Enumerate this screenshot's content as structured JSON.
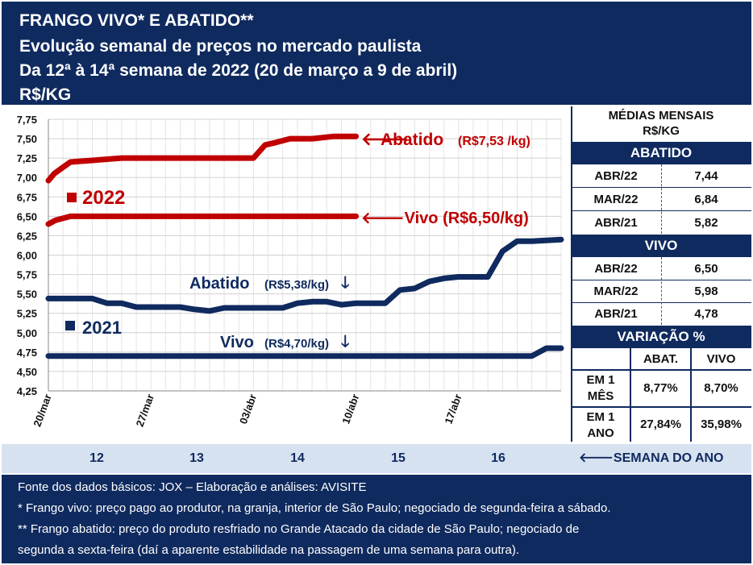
{
  "header": {
    "line1": "FRANGO VIVO* E ABATIDO**",
    "line2": "Evolução semanal de preços no mercado paulista",
    "line3": "Da 12ª à 14ª semana de 2022 (20 de março a 9 de abril)",
    "line4": "R$/KG"
  },
  "colors": {
    "navy": "#0f2a5e",
    "red": "#c00000",
    "light_blue": "#d7e2f1"
  },
  "chart_data": {
    "type": "line",
    "ylim": [
      4.25,
      7.75
    ],
    "yticks": [
      "7,75",
      "7,50",
      "7,25",
      "7,00",
      "6,75",
      "6,50",
      "6,25",
      "6,00",
      "5,75",
      "5,50",
      "5,25",
      "5,00",
      "4,75",
      "4,50",
      "4,25"
    ],
    "ytick_values": [
      7.75,
      7.5,
      7.25,
      7.0,
      6.75,
      6.5,
      6.25,
      6.0,
      5.75,
      5.5,
      5.25,
      5.0,
      4.75,
      4.5,
      4.25
    ],
    "xlim": [
      0,
      35
    ],
    "xtick_labels": [
      "20/mar",
      "27/mar",
      "03/abr",
      "10/abr",
      "17/abr"
    ],
    "xtick_values": [
      0,
      7,
      14,
      21,
      28
    ],
    "grid": true,
    "series": [
      {
        "name": "Abatido 2022",
        "color": "#c00000",
        "year": "2022",
        "x": [
          0,
          0.4,
          1.5,
          3,
          5,
          7,
          9,
          11,
          13,
          14,
          14.8,
          15.5,
          16.5,
          18,
          19.5,
          21
        ],
        "y": [
          6.96,
          7.05,
          7.2,
          7.22,
          7.25,
          7.25,
          7.25,
          7.25,
          7.25,
          7.25,
          7.42,
          7.45,
          7.5,
          7.5,
          7.53,
          7.53
        ]
      },
      {
        "name": "Vivo 2022",
        "color": "#c00000",
        "year": "2022",
        "x": [
          0,
          0.5,
          1.5,
          3,
          7,
          10,
          14,
          18,
          21
        ],
        "y": [
          6.4,
          6.45,
          6.5,
          6.5,
          6.5,
          6.5,
          6.5,
          6.5,
          6.5
        ]
      },
      {
        "name": "Abatido 2021",
        "color": "#0f2a5e",
        "year": "2021",
        "x": [
          0,
          1,
          2,
          3,
          4,
          5,
          6,
          7,
          8,
          9,
          10,
          11,
          12,
          13,
          14,
          15,
          16,
          17,
          18,
          19,
          20,
          21,
          22,
          23,
          24,
          25,
          26,
          27,
          28,
          29,
          30,
          31,
          32,
          33,
          34,
          35
        ],
        "y": [
          5.44,
          5.44,
          5.44,
          5.44,
          5.38,
          5.38,
          5.33,
          5.33,
          5.33,
          5.33,
          5.3,
          5.28,
          5.32,
          5.32,
          5.32,
          5.32,
          5.32,
          5.38,
          5.4,
          5.4,
          5.36,
          5.38,
          5.38,
          5.38,
          5.55,
          5.57,
          5.66,
          5.7,
          5.72,
          5.72,
          5.72,
          6.05,
          6.18,
          6.18,
          6.19,
          6.2
        ]
      },
      {
        "name": "Vivo 2021",
        "color": "#0f2a5e",
        "year": "2021",
        "x": [
          0,
          10,
          20,
          30,
          31,
          32,
          33,
          34,
          35
        ],
        "y": [
          4.7,
          4.7,
          4.7,
          4.7,
          4.7,
          4.7,
          4.7,
          4.8,
          4.8
        ]
      }
    ],
    "annotations": {
      "abat22_arrow": "🡐",
      "abat22_name": "Abatido",
      "abat22_val": "(R$7,53 /kg)",
      "vivo22_text": "🡐Vivo (R$6,50/kg)",
      "year2022": "2022",
      "year2021": "2021",
      "abat21_name": "Abatido",
      "abat21_val": "(R$5,38/kg)",
      "vivo21_name": "Vivo",
      "vivo21_val": "(R$4,70/kg)",
      "down_arrow": "🡓"
    }
  },
  "panel": {
    "title1": "MÉDIAS MENSAIS",
    "title2": "R$/KG",
    "abatido_title": "ABATIDO",
    "abatido_rows": [
      {
        "label": "ABR/22",
        "value": "7,44"
      },
      {
        "label": "MAR/22",
        "value": "6,84"
      },
      {
        "label": "ABR/21",
        "value": "5,82"
      }
    ],
    "vivo_title": "VIVO",
    "vivo_rows": [
      {
        "label": "ABR/22",
        "value": "6,50"
      },
      {
        "label": "MAR/22",
        "value": "5,98"
      },
      {
        "label": "ABR/21",
        "value": "4,78"
      }
    ],
    "variacao_title": "VARIAÇÃO %",
    "col_abat": "ABAT.",
    "col_vivo": "VIVO",
    "var_rows": [
      {
        "label1": "EM 1",
        "label2": "MÊS",
        "abat": "8,77%",
        "vivo": "8,70%"
      },
      {
        "label1": "EM 1",
        "label2": "ANO",
        "abat": "27,84%",
        "vivo": "35,98%"
      }
    ]
  },
  "weeks": {
    "labels": [
      "12",
      "13",
      "14",
      "15",
      "16"
    ],
    "caption": "🡐SEMANA DO ANO"
  },
  "footer": {
    "line1": "Fonte dos dados básicos: JOX – Elaboração e análises: AVISITE",
    "line2": "*   Frango vivo: preço pago ao produtor, na granja, interior de São Paulo; negociado de segunda-feira a sábado.",
    "line3": "** Frango abatido: preço do produto resfriado no Grande Atacado da cidade de São Paulo; negociado de",
    "line4": "segunda a sexta-feira (daí a aparente estabilidade na passagem de uma semana para outra)."
  }
}
